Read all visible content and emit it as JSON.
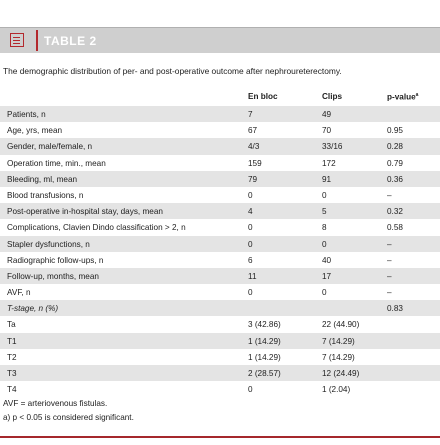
{
  "header": {
    "title": "TABLE 2"
  },
  "caption": "The demographic distribution of per- and post-operative outcome after nephroureterectomy.",
  "table": {
    "columns": [
      "",
      "En bloc",
      "Clips",
      "p-value"
    ],
    "column_note_marker": "a",
    "rows": [
      [
        "Patients, n",
        "7",
        "49",
        ""
      ],
      [
        "Age, yrs, mean",
        "67",
        "70",
        "0.95"
      ],
      [
        "Gender, male/female, n",
        "4/3",
        "33/16",
        "0.28"
      ],
      [
        "Operation time, min., mean",
        "159",
        "172",
        "0.79"
      ],
      [
        "Bleeding, ml, mean",
        "79",
        "91",
        "0.36"
      ],
      [
        "Blood transfusions, n",
        "0",
        "0",
        "–"
      ],
      [
        "Post-operative in-hospital stay, days, mean",
        "4",
        "5",
        "0.32"
      ],
      [
        "Complications, Clavien Dindo classification > 2, n",
        "0",
        "8",
        "0.58"
      ],
      [
        "Stapler dysfunctions, n",
        "0",
        "0",
        "–"
      ],
      [
        "Radiographic follow-ups, n",
        "6",
        "40",
        "–"
      ],
      [
        "Follow-up, months, mean",
        "11",
        "17",
        "–"
      ],
      [
        "AVF, n",
        "0",
        "0",
        "–"
      ],
      [
        "T-stage, n (%)",
        "",
        "",
        "0.83"
      ],
      [
        "Ta",
        "3 (42.86)",
        "22 (44.90)",
        ""
      ],
      [
        "T1",
        "1 (14.29)",
        "7 (14.29)",
        ""
      ],
      [
        "T2",
        "1 (14.29)",
        "7 (14.29)",
        ""
      ],
      [
        "T3",
        "2 (28.57)",
        "12 (24.49)",
        ""
      ],
      [
        "T4",
        "0",
        "1 (2.04)",
        ""
      ]
    ]
  },
  "notes": [
    "AVF = arteriovenous fistulas.",
    "a) p < 0.05 is considered significant."
  ]
}
